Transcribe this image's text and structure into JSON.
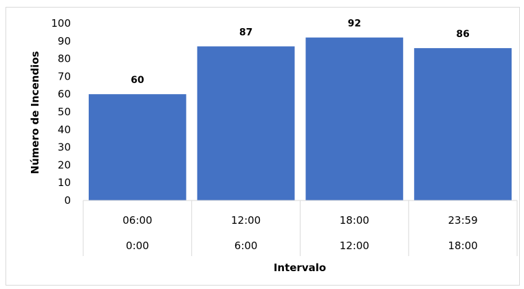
{
  "chart_data": {
    "type": "bar",
    "categories": [
      {
        "top": "06:00",
        "bottom": "0:00"
      },
      {
        "top": "12:00",
        "bottom": "6:00"
      },
      {
        "top": "18:00",
        "bottom": "12:00"
      },
      {
        "top": "23:59",
        "bottom": "18:00"
      }
    ],
    "values": [
      60,
      87,
      92,
      86
    ],
    "xlabel": "Intervalo",
    "ylabel": "Número de Incendios",
    "ylim": [
      0,
      100
    ],
    "yticks": [
      0,
      10,
      20,
      30,
      40,
      50,
      60,
      70,
      80,
      90,
      100
    ],
    "data_labels": true,
    "grid": false,
    "bar_color": "#4472C4"
  }
}
